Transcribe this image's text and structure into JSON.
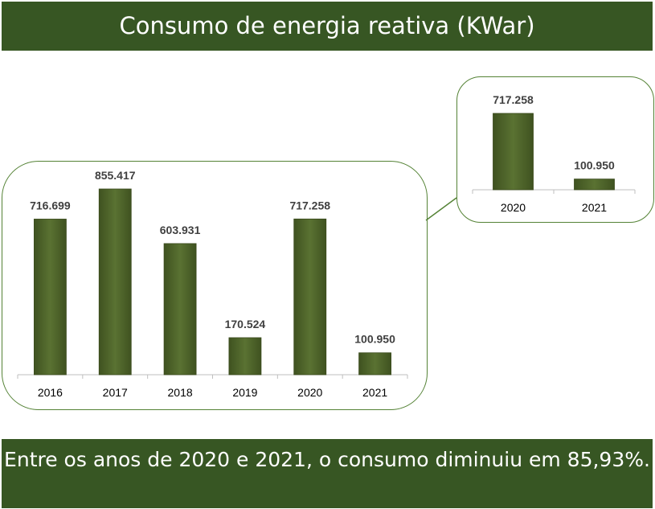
{
  "title": "Consumo de energia reativa (KWar)",
  "footer": "Entre os anos de 2020 e 2021, o consumo diminuiu em 85,93%.",
  "colors": {
    "banner": "#375623",
    "bar": "#4f6228",
    "panel_border": "#548235"
  },
  "chart_data": [
    {
      "type": "bar",
      "title": "",
      "categories": [
        "2016",
        "2017",
        "2018",
        "2019",
        "2020",
        "2021"
      ],
      "values": [
        716699,
        855417,
        603931,
        170524,
        717258,
        100950
      ],
      "labels": [
        "716.699",
        "855.417",
        "603.931",
        "170.524",
        "717.258",
        "100.950"
      ],
      "ylim": [
        0,
        855417
      ],
      "grid": false,
      "legend": "none"
    },
    {
      "type": "bar",
      "title": "",
      "categories": [
        "2020",
        "2021"
      ],
      "values": [
        717258,
        100950
      ],
      "labels": [
        "717.258",
        "100.950"
      ],
      "ylim": [
        0,
        717258
      ],
      "grid": false,
      "legend": "none"
    }
  ]
}
